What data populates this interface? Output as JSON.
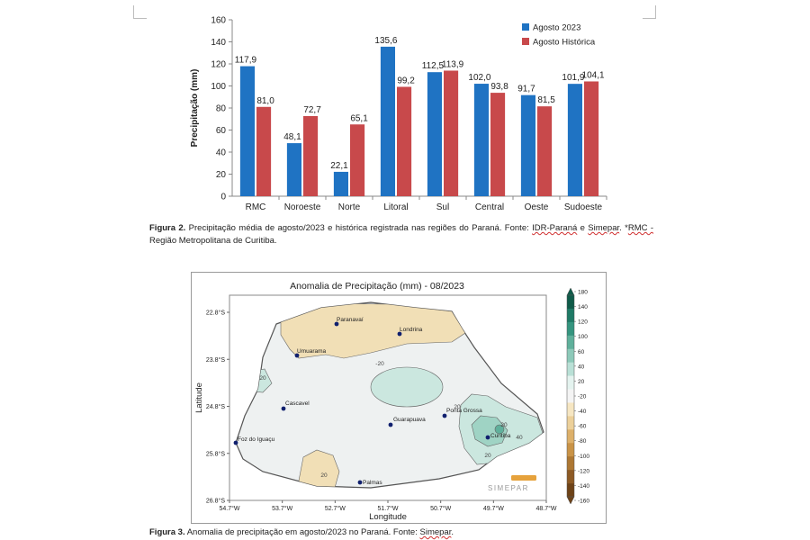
{
  "chart_data": [
    {
      "type": "bar",
      "categories": [
        "RMC",
        "Noroeste",
        "Norte",
        "Litoral",
        "Sul",
        "Central",
        "Oeste",
        "Sudoeste"
      ],
      "series": [
        {
          "name": "Agosto 2023",
          "values": [
            117.9,
            48.1,
            22.1,
            135.6,
            112.5,
            102.0,
            91.7,
            101.9
          ],
          "labels": [
            "117,9",
            "48,1",
            "22,1",
            "135,6",
            "112,5",
            "102,0",
            "91,7",
            "101,9"
          ],
          "color": "#1f73c3"
        },
        {
          "name": "Agosto Histórica",
          "values": [
            81.0,
            72.7,
            65.1,
            99.2,
            113.9,
            93.8,
            81.5,
            104.1
          ],
          "labels": [
            "81,0",
            "72,7",
            "65,1",
            "99,2",
            "113,9",
            "93,8",
            "81,5",
            "104,1"
          ],
          "color": "#c8494b"
        }
      ],
      "ylabel": "Precipitação (mm)",
      "ylim": [
        0,
        160
      ],
      "yticks": [
        "0",
        "20",
        "40",
        "60",
        "80",
        "100",
        "120",
        "140",
        "160"
      ],
      "legend": "top-right",
      "grid": false
    },
    {
      "type": "heatmap",
      "title": "Anomalia de Precipitação (mm) - 08/2023",
      "xlabel": "Longitude",
      "ylabel": "Latitude",
      "xticks": [
        "54.7°W",
        "53.7°W",
        "52.7°W",
        "51.7°W",
        "50.7°W",
        "49.7°W",
        "48.7°W"
      ],
      "yticks": [
        "22.8°S",
        "23.8°S",
        "24.8°S",
        "25.8°S",
        "26.8°S"
      ],
      "colorbar": {
        "labels": [
          "180",
          "140",
          "120",
          "100",
          "60",
          "40",
          "20",
          "-20",
          "-40",
          "-60",
          "-80",
          "-100",
          "-120",
          "-140",
          "-160"
        ],
        "colors": [
          "#0f5b49",
          "#1f7a66",
          "#35957f",
          "#5fb09b",
          "#8dc9b9",
          "#b9e0d6",
          "#e4f3ef",
          "#f4f4f4",
          "#f6e6c2",
          "#ecd09a",
          "#ddb06a",
          "#c99347",
          "#ad7733",
          "#8d5a24",
          "#6e4318"
        ]
      },
      "cities": [
        "Paranavaí",
        "Londrina",
        "Umuarama",
        "Cascavel",
        "Guarapuava",
        "Ponta Grossa",
        "Curitiba",
        "Foz do Iguaçu",
        "Palmas"
      ],
      "contour_labels": [
        "-20",
        "20",
        "20",
        "20",
        "20",
        "40",
        "20"
      ],
      "logo": "SIMEPAR",
      "colors": {
        "land": "#eef1f1",
        "dry": "#f1dfb6",
        "wet": "#cbe7df",
        "wetter": "#9fd3c4"
      }
    }
  ],
  "captions": {
    "fig2_label": "Figura 2.",
    "fig2_text_a": " Precipitação média de agosto/2023 e histórica registrada nas regiões do Paraná. Fonte: ",
    "fig2_src1": "IDR-Paraná",
    "fig2_text_b": " e ",
    "fig2_src2": "Simepar",
    "fig2_text_c": ". *",
    "fig2_rmc": "RMC -",
    "fig2_text_d": " Região Metropolitana de Curitiba.",
    "fig3_label": "Figura 3.",
    "fig3_text": " Anomalia de precipitação em agosto/2023 no Paraná. Fonte: ",
    "fig3_src": "Simepar",
    "fig3_end": "."
  }
}
